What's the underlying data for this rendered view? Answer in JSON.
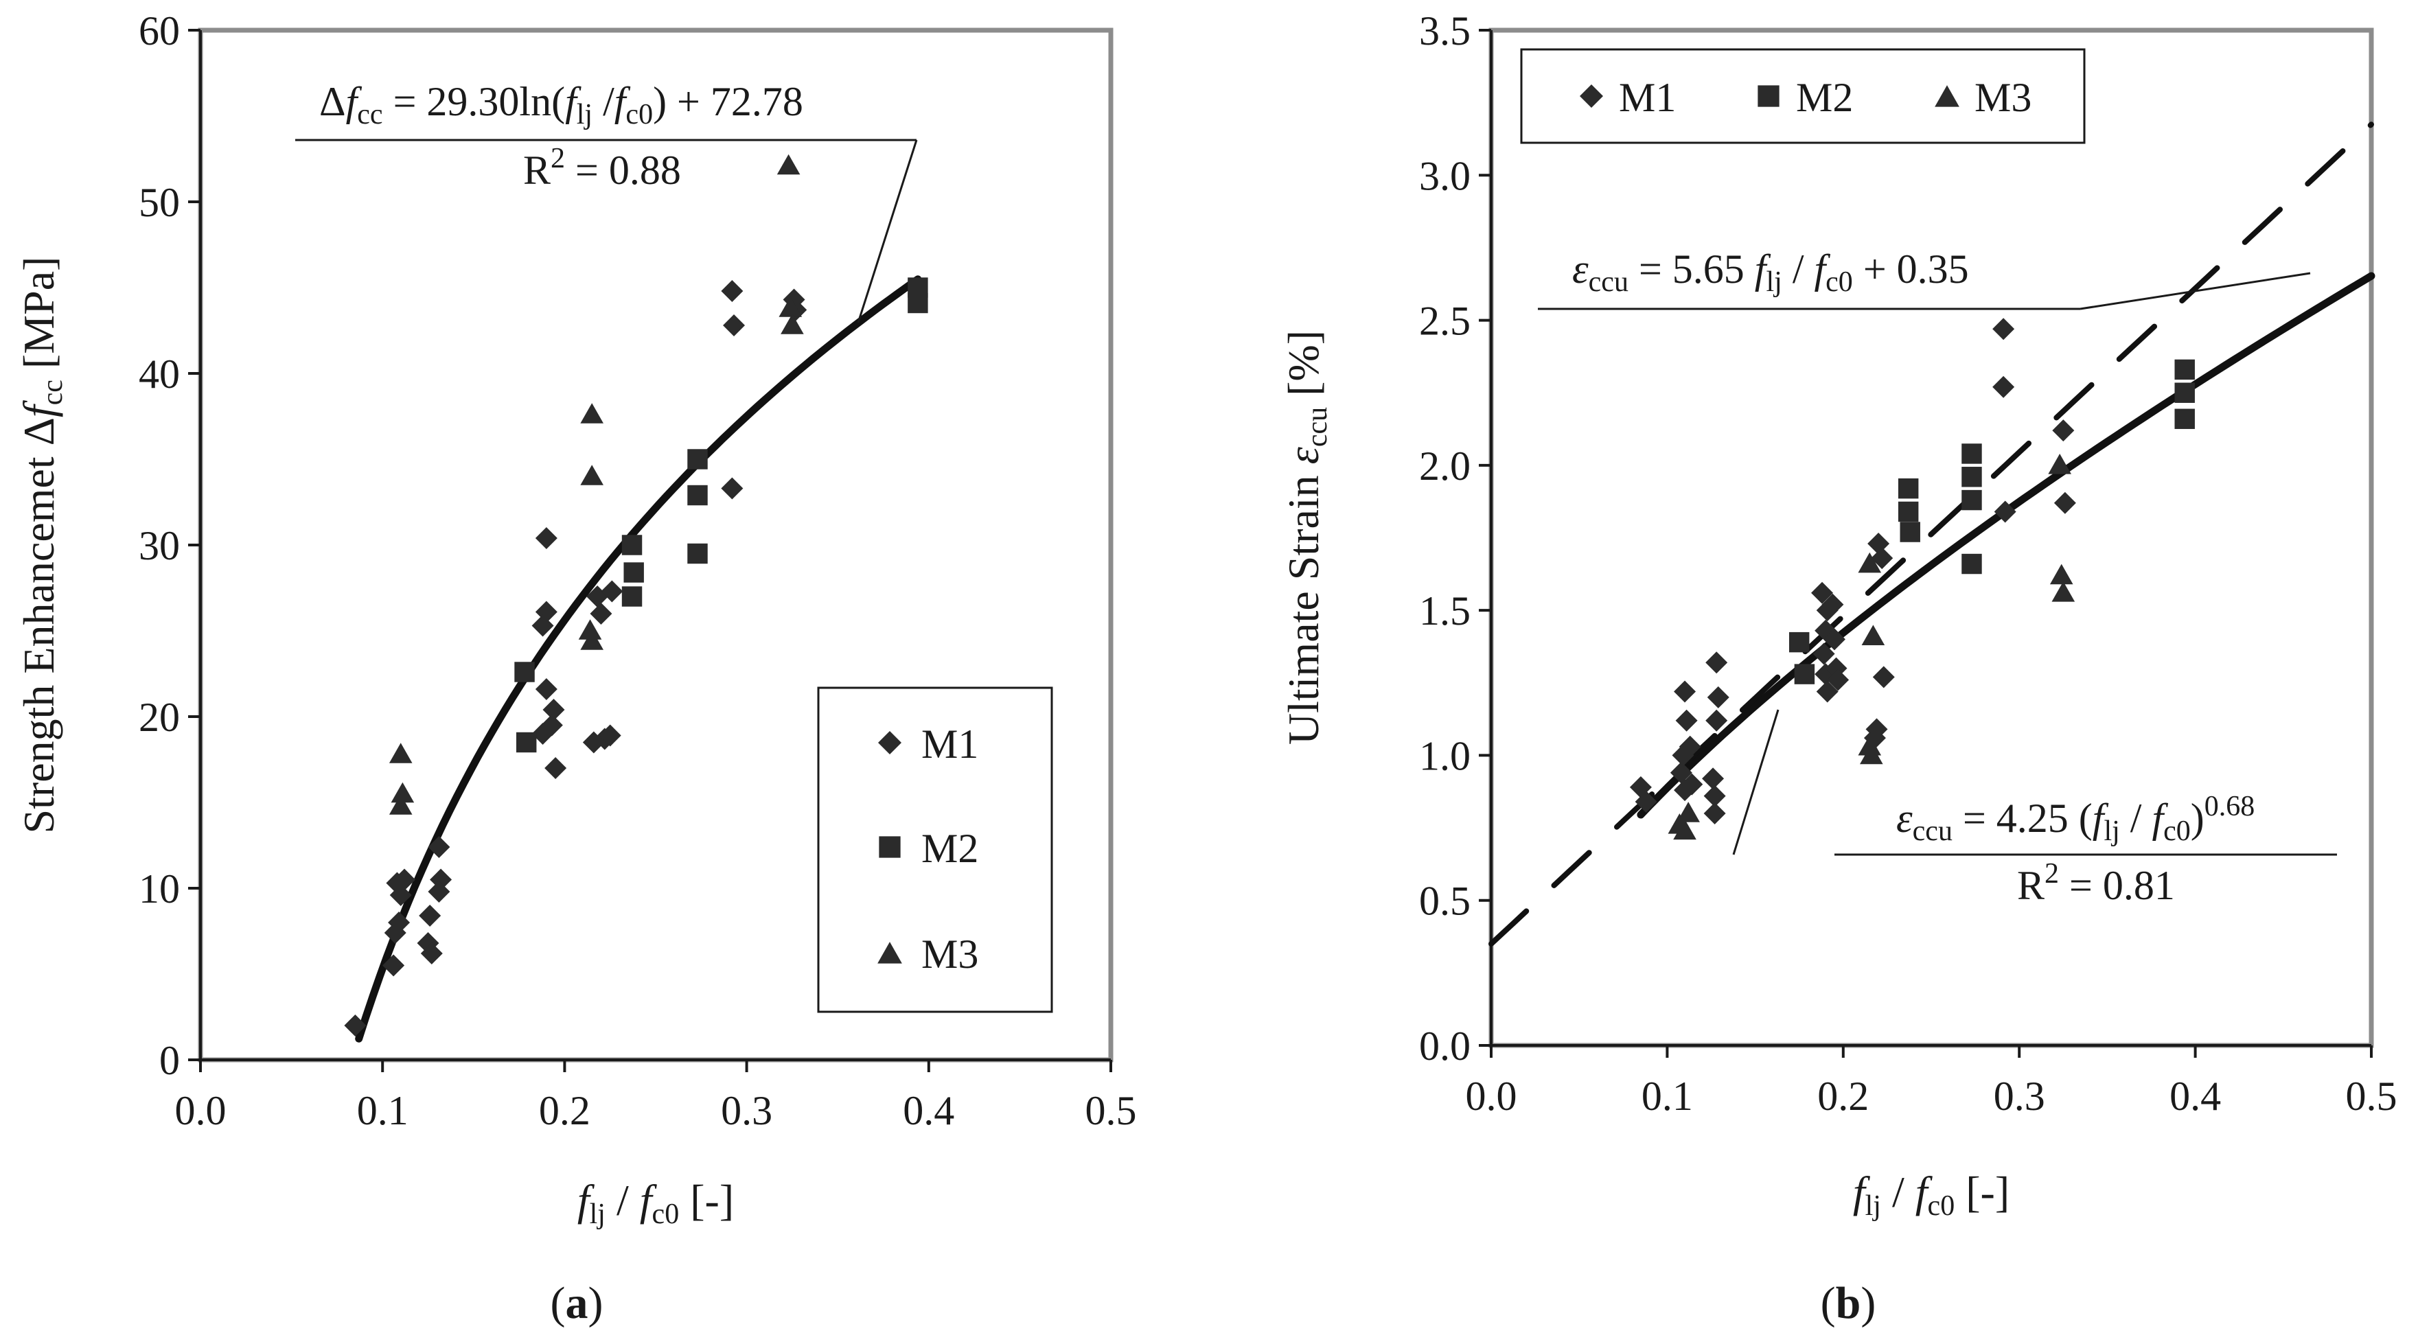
{
  "chart_data": [
    {
      "type": "scatter",
      "panel_label": {
        "open": "(",
        "letter": "a",
        "close": ")"
      },
      "xlabel": {
        "v1": "f",
        "s1": "lj",
        "mid": " / ",
        "v2": "f",
        "s2": "c0",
        "unit": " [-]"
      },
      "ylabel": {
        "pre": "Strength Enhancemet Δ",
        "v": "f",
        "s": "cc",
        "unit": " [MPa]"
      },
      "xlim": [
        0.0,
        0.5
      ],
      "ylim": [
        0,
        60
      ],
      "xticks": [
        "0.0",
        "0.1",
        "0.2",
        "0.3",
        "0.4",
        "0.5"
      ],
      "yticks": [
        "0",
        "10",
        "20",
        "30",
        "40",
        "50",
        "60"
      ],
      "legend": {
        "position": "lower-right",
        "entries": [
          "M1",
          "M2",
          "M3"
        ]
      },
      "series": [
        {
          "name": "M1",
          "marker": "diamond",
          "points": [
            [
              0.085,
              2.0
            ],
            [
              0.108,
              10.3
            ],
            [
              0.11,
              9.6
            ],
            [
              0.109,
              8.0
            ],
            [
              0.107,
              7.4
            ],
            [
              0.106,
              5.5
            ],
            [
              0.112,
              10.5
            ],
            [
              0.126,
              8.4
            ],
            [
              0.125,
              6.8
            ],
            [
              0.127,
              6.2
            ],
            [
              0.131,
              12.4
            ],
            [
              0.132,
              10.5
            ],
            [
              0.131,
              9.8
            ],
            [
              0.19,
              30.4
            ],
            [
              0.19,
              26.1
            ],
            [
              0.188,
              25.3
            ],
            [
              0.19,
              21.6
            ],
            [
              0.194,
              20.4
            ],
            [
              0.193,
              19.5
            ],
            [
              0.188,
              19.0
            ],
            [
              0.195,
              17.0
            ],
            [
              0.218,
              27.0
            ],
            [
              0.22,
              26.0
            ],
            [
              0.222,
              18.7
            ],
            [
              0.216,
              18.5
            ],
            [
              0.226,
              27.3
            ],
            [
              0.225,
              18.9
            ],
            [
              0.292,
              44.8
            ],
            [
              0.293,
              42.8
            ],
            [
              0.292,
              33.3
            ],
            [
              0.326,
              44.3
            ],
            [
              0.327,
              43.7
            ]
          ]
        },
        {
          "name": "M2",
          "marker": "square",
          "points": [
            [
              0.178,
              22.6
            ],
            [
              0.179,
              18.5
            ],
            [
              0.237,
              30.0
            ],
            [
              0.238,
              28.4
            ],
            [
              0.237,
              27.0
            ],
            [
              0.273,
              35.0
            ],
            [
              0.273,
              32.9
            ],
            [
              0.273,
              29.5
            ],
            [
              0.394,
              45.0
            ],
            [
              0.394,
              44.1
            ]
          ]
        },
        {
          "name": "M3",
          "marker": "triangle",
          "points": [
            [
              0.11,
              17.8
            ],
            [
              0.111,
              15.5
            ],
            [
              0.11,
              14.8
            ],
            [
              0.215,
              37.6
            ],
            [
              0.215,
              34.0
            ],
            [
              0.214,
              25.0
            ],
            [
              0.215,
              24.4
            ],
            [
              0.323,
              52.1
            ],
            [
              0.324,
              43.8
            ],
            [
              0.325,
              42.8
            ]
          ]
        }
      ],
      "fit": {
        "type": "log",
        "a": 29.3,
        "b": 72.78,
        "x_range": [
          0.087,
          0.394
        ],
        "equation": {
          "pre": "Δ",
          "v": "f",
          "s": "cc",
          "mid": " = 29.30ln(",
          "v2": "f",
          "s2": "lj",
          "sl": " /",
          "v3": "f",
          "s3": "c0",
          "post": ") + 72.78"
        },
        "r2": {
          "R": "R",
          "sup": "2",
          "rest": " = 0.88"
        }
      }
    },
    {
      "type": "scatter",
      "panel_label": {
        "open": "(",
        "letter": "b",
        "close": ")"
      },
      "xlabel": {
        "v1": "f",
        "s1": "lj",
        "mid": " / ",
        "v2": "f",
        "s2": "c0",
        "unit": " [-]"
      },
      "ylabel": {
        "pre": "Ultimate Strain ",
        "v": "ε",
        "s": "ccu",
        "unit": " [%]"
      },
      "xlim": [
        0.0,
        0.5
      ],
      "ylim": [
        0.0,
        3.5
      ],
      "xticks": [
        "0.0",
        "0.1",
        "0.2",
        "0.3",
        "0.4",
        "0.5"
      ],
      "yticks": [
        "0.0",
        "0.5",
        "1.0",
        "1.5",
        "2.0",
        "2.5",
        "3.0",
        "3.5"
      ],
      "legend": {
        "position": "top-left",
        "entries": [
          "M1",
          "M2",
          "M3"
        ]
      },
      "series": [
        {
          "name": "M1",
          "marker": "diamond",
          "points": [
            [
              0.085,
              0.89
            ],
            [
              0.088,
              0.84
            ],
            [
              0.11,
              1.22
            ],
            [
              0.111,
              1.12
            ],
            [
              0.109,
              1.0
            ],
            [
              0.108,
              0.94
            ],
            [
              0.11,
              0.88
            ],
            [
              0.113,
              1.03
            ],
            [
              0.114,
              0.9
            ],
            [
              0.128,
              1.32
            ],
            [
              0.129,
              1.2
            ],
            [
              0.128,
              1.12
            ],
            [
              0.126,
              0.92
            ],
            [
              0.127,
              0.86
            ],
            [
              0.127,
              0.8
            ],
            [
              0.188,
              1.56
            ],
            [
              0.191,
              1.5
            ],
            [
              0.19,
              1.43
            ],
            [
              0.189,
              1.35
            ],
            [
              0.19,
              1.28
            ],
            [
              0.191,
              1.22
            ],
            [
              0.194,
              1.52
            ],
            [
              0.195,
              1.4
            ],
            [
              0.196,
              1.3
            ],
            [
              0.197,
              1.26
            ],
            [
              0.22,
              1.73
            ],
            [
              0.222,
              1.68
            ],
            [
              0.219,
              1.09
            ],
            [
              0.218,
              1.06
            ],
            [
              0.223,
              1.27
            ],
            [
              0.291,
              2.47
            ],
            [
              0.291,
              2.27
            ],
            [
              0.292,
              1.84
            ],
            [
              0.325,
              2.12
            ],
            [
              0.326,
              1.87
            ]
          ]
        },
        {
          "name": "M2",
          "marker": "square",
          "points": [
            [
              0.175,
              1.39
            ],
            [
              0.178,
              1.28
            ],
            [
              0.237,
              1.92
            ],
            [
              0.237,
              1.84
            ],
            [
              0.238,
              1.77
            ],
            [
              0.273,
              2.04
            ],
            [
              0.273,
              1.96
            ],
            [
              0.273,
              1.88
            ],
            [
              0.273,
              1.66
            ],
            [
              0.394,
              2.33
            ],
            [
              0.394,
              2.25
            ],
            [
              0.394,
              2.16
            ]
          ]
        },
        {
          "name": "M3",
          "marker": "triangle",
          "points": [
            [
              0.107,
              0.76
            ],
            [
              0.11,
              0.74
            ],
            [
              0.112,
              0.8
            ],
            [
              0.215,
              1.66
            ],
            [
              0.217,
              1.41
            ],
            [
              0.215,
              1.03
            ],
            [
              0.216,
              1.0
            ],
            [
              0.323,
              2.0
            ],
            [
              0.324,
              1.62
            ],
            [
              0.325,
              1.56
            ]
          ]
        }
      ],
      "fits": [
        {
          "type": "power",
          "a": 4.25,
          "b": 0.68,
          "style": "solid",
          "x_range": [
            0.085,
            0.5
          ],
          "equation": {
            "v": "ε",
            "s": "ccu",
            "mid": " = 4.25 (",
            "v2": "f",
            "s2": "lj",
            "sl": " / ",
            "v3": "f",
            "s3": "c0",
            "close": ")",
            "sup": "0.68"
          },
          "r2": {
            "R": "R",
            "sup": "2",
            "rest": " = 0.81"
          }
        },
        {
          "type": "linear",
          "slope": 5.65,
          "intercept": 0.35,
          "style": "dashed",
          "x_range": [
            0.0,
            0.5
          ],
          "equation": {
            "v": "ε",
            "s": "ccu",
            "mid": " = 5.65 ",
            "v2": "f",
            "s2": "lj",
            "sl": " / ",
            "v3": "f",
            "s3": "c0",
            "post": " + 0.35"
          }
        }
      ]
    }
  ]
}
